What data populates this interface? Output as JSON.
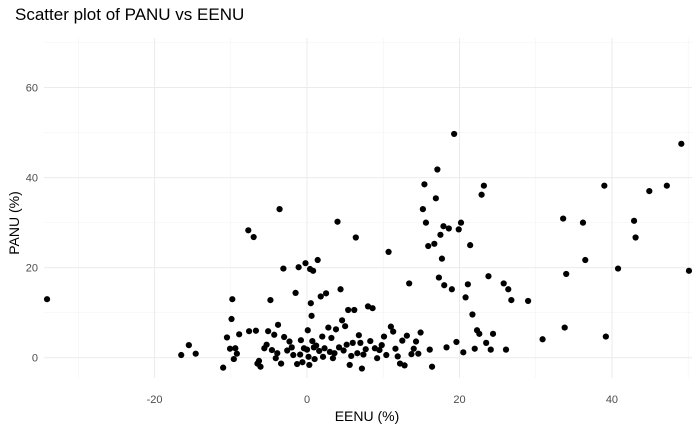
{
  "chart_data": {
    "type": "scatter",
    "title": "Scatter plot of PANU vs EENU",
    "xlabel": "EENU (%)",
    "ylabel": "PANU (%)",
    "xlim": [
      -34.5,
      50.5
    ],
    "ylim": [
      -4.5,
      71
    ],
    "xticks": [
      -20,
      0,
      20,
      40
    ],
    "yticks": [
      0,
      20,
      40,
      60
    ],
    "grid": true,
    "point_color": "#000000",
    "points": [
      [
        -34.1,
        13.0
      ],
      [
        -16.5,
        0.6
      ],
      [
        -15.5,
        2.8
      ],
      [
        -14.6,
        0.9
      ],
      [
        -11.0,
        -2.2
      ],
      [
        -10.5,
        4.5
      ],
      [
        -10.1,
        2.0
      ],
      [
        -9.9,
        8.6
      ],
      [
        -9.8,
        13.0
      ],
      [
        -9.6,
        -0.3
      ],
      [
        -9.4,
        2.1
      ],
      [
        -9.2,
        0.9
      ],
      [
        -8.9,
        5.2
      ],
      [
        -7.7,
        28.3
      ],
      [
        -7.6,
        5.9
      ],
      [
        -7.0,
        26.8
      ],
      [
        -6.7,
        6.0
      ],
      [
        -6.5,
        -1.3
      ],
      [
        -6.3,
        -0.7
      ],
      [
        -6.1,
        -2.0
      ],
      [
        -5.6,
        2.1
      ],
      [
        -5.3,
        2.9
      ],
      [
        -5.1,
        5.9
      ],
      [
        -4.8,
        12.8
      ],
      [
        -4.6,
        1.7
      ],
      [
        -4.3,
        5.1
      ],
      [
        -4.1,
        -0.1
      ],
      [
        -3.9,
        1.0
      ],
      [
        -3.8,
        7.3
      ],
      [
        -3.6,
        33.0
      ],
      [
        -3.4,
        -1.3
      ],
      [
        -3.1,
        19.8
      ],
      [
        -3.0,
        4.6
      ],
      [
        -2.6,
        1.6
      ],
      [
        -2.3,
        3.6
      ],
      [
        -2.0,
        2.3
      ],
      [
        -1.8,
        0.6
      ],
      [
        -1.5,
        14.4
      ],
      [
        -1.3,
        -1.4
      ],
      [
        -1.1,
        20.1
      ],
      [
        -0.9,
        0.7
      ],
      [
        -0.8,
        3.9
      ],
      [
        -0.6,
        -1.0
      ],
      [
        -0.4,
        2.1
      ],
      [
        -0.2,
        21.0
      ],
      [
        0.0,
        1.8
      ],
      [
        0.1,
        6.1
      ],
      [
        0.2,
        0.2
      ],
      [
        0.3,
        -1.6
      ],
      [
        0.4,
        19.7
      ],
      [
        0.5,
        12.1
      ],
      [
        0.6,
        9.3
      ],
      [
        0.7,
        3.7
      ],
      [
        0.8,
        19.3
      ],
      [
        0.9,
        2.3
      ],
      [
        1.0,
        -0.3
      ],
      [
        1.2,
        2.7
      ],
      [
        1.4,
        21.7
      ],
      [
        1.6,
        1.5
      ],
      [
        1.8,
        13.6
      ],
      [
        2.0,
        4.7
      ],
      [
        2.1,
        0.2
      ],
      [
        2.3,
        2.1
      ],
      [
        2.5,
        14.3
      ],
      [
        2.8,
        6.7
      ],
      [
        3.0,
        1.3
      ],
      [
        3.2,
        4.4
      ],
      [
        3.4,
        -0.1
      ],
      [
        3.6,
        1.0
      ],
      [
        3.8,
        6.3
      ],
      [
        4.0,
        30.2
      ],
      [
        4.2,
        2.3
      ],
      [
        4.4,
        15.2
      ],
      [
        4.6,
        8.3
      ],
      [
        4.8,
        1.6
      ],
      [
        5.0,
        7.0
      ],
      [
        5.2,
        2.9
      ],
      [
        5.4,
        10.6
      ],
      [
        5.6,
        -1.6
      ],
      [
        5.8,
        0.4
      ],
      [
        6.0,
        3.3
      ],
      [
        6.2,
        10.6
      ],
      [
        6.4,
        26.7
      ],
      [
        6.6,
        1.0
      ],
      [
        6.8,
        5.0
      ],
      [
        7.0,
        3.3
      ],
      [
        7.2,
        -2.4
      ],
      [
        7.4,
        0.7
      ],
      [
        7.7,
        1.9
      ],
      [
        8.0,
        11.4
      ],
      [
        8.3,
        3.7
      ],
      [
        8.6,
        11.0
      ],
      [
        8.9,
        2.1
      ],
      [
        9.2,
        -0.1
      ],
      [
        9.5,
        1.7
      ],
      [
        9.8,
        2.8
      ],
      [
        10.1,
        4.7
      ],
      [
        10.4,
        0.6
      ],
      [
        10.7,
        23.5
      ],
      [
        11.0,
        6.9
      ],
      [
        11.3,
        5.8
      ],
      [
        11.6,
        2.0
      ],
      [
        11.9,
        0.3
      ],
      [
        12.2,
        -1.3
      ],
      [
        12.5,
        3.8
      ],
      [
        12.8,
        -1.7
      ],
      [
        13.1,
        4.9
      ],
      [
        13.4,
        16.5
      ],
      [
        13.7,
        0.8
      ],
      [
        14.0,
        2.0
      ],
      [
        14.3,
        3.6
      ],
      [
        14.6,
        0.9
      ],
      [
        14.9,
        5.6
      ],
      [
        15.2,
        33.0
      ],
      [
        15.4,
        38.5
      ],
      [
        15.6,
        30.0
      ],
      [
        15.9,
        24.8
      ],
      [
        16.1,
        1.8
      ],
      [
        16.4,
        -2.0
      ],
      [
        16.7,
        25.3
      ],
      [
        16.9,
        35.4
      ],
      [
        17.1,
        41.8
      ],
      [
        17.3,
        17.8
      ],
      [
        17.5,
        27.3
      ],
      [
        17.7,
        22.0
      ],
      [
        17.9,
        29.2
      ],
      [
        18.0,
        16.1
      ],
      [
        18.3,
        2.3
      ],
      [
        18.6,
        28.7
      ],
      [
        19.0,
        15.2
      ],
      [
        19.3,
        49.7
      ],
      [
        19.6,
        3.5
      ],
      [
        19.9,
        28.5
      ],
      [
        20.2,
        30.0
      ],
      [
        20.5,
        1.2
      ],
      [
        20.8,
        13.4
      ],
      [
        21.1,
        16.3
      ],
      [
        21.4,
        25.0
      ],
      [
        21.7,
        9.6
      ],
      [
        22.0,
        2.0
      ],
      [
        22.3,
        6.1
      ],
      [
        22.6,
        5.3
      ],
      [
        22.9,
        36.2
      ],
      [
        23.2,
        38.2
      ],
      [
        23.5,
        3.3
      ],
      [
        23.8,
        18.1
      ],
      [
        24.1,
        1.8
      ],
      [
        24.4,
        5.3
      ],
      [
        25.8,
        16.5
      ],
      [
        26.1,
        1.8
      ],
      [
        26.4,
        15.2
      ],
      [
        26.8,
        12.8
      ],
      [
        29.0,
        12.6
      ],
      [
        30.9,
        4.1
      ],
      [
        33.6,
        30.9
      ],
      [
        33.8,
        6.7
      ],
      [
        34.0,
        18.6
      ],
      [
        36.2,
        30.0
      ],
      [
        36.5,
        21.7
      ],
      [
        39.0,
        38.2
      ],
      [
        39.2,
        4.7
      ],
      [
        40.8,
        19.8
      ],
      [
        42.9,
        30.4
      ],
      [
        43.1,
        26.7
      ],
      [
        44.9,
        37.0
      ],
      [
        47.2,
        38.2
      ],
      [
        49.1,
        47.5
      ],
      [
        50.1,
        19.3
      ]
    ]
  }
}
